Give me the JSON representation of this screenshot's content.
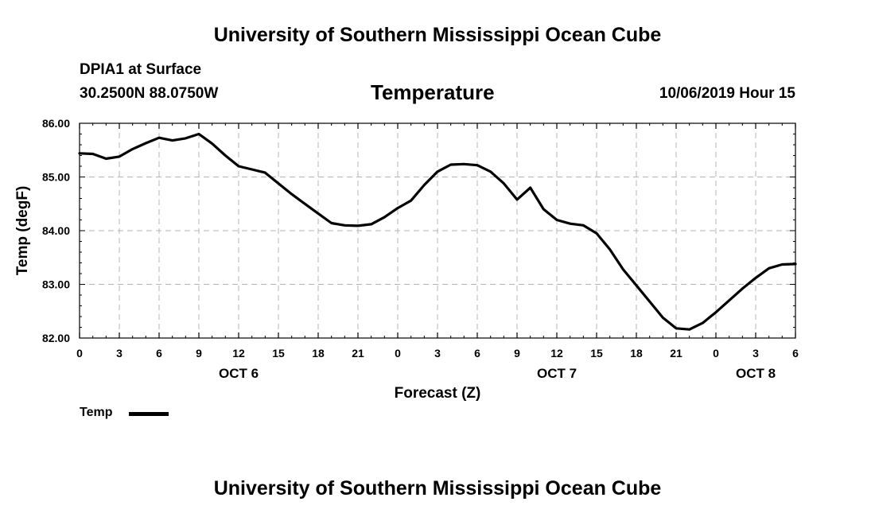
{
  "header": {
    "title": "University of Southern Mississippi Ocean Cube",
    "station": "DPIA1 at Surface",
    "coords": "30.2500N 88.0750W",
    "variable": "Temperature",
    "datetime": "10/06/2019 Hour 15"
  },
  "footer": {
    "title": "University of Southern Mississippi Ocean Cube"
  },
  "legend": {
    "label": "Temp"
  },
  "chart_data": {
    "type": "line",
    "title": "Temperature",
    "xlabel": "Forecast (Z)",
    "ylabel": "Temp (degF)",
    "ylim": [
      82,
      86
    ],
    "xlim": [
      0,
      54
    ],
    "yticks": [
      "82.00",
      "83.00",
      "84.00",
      "85.00",
      "86.00"
    ],
    "xticks": [
      {
        "x": 0,
        "label": "0"
      },
      {
        "x": 3,
        "label": "3"
      },
      {
        "x": 6,
        "label": "6"
      },
      {
        "x": 9,
        "label": "9"
      },
      {
        "x": 12,
        "label": "12"
      },
      {
        "x": 15,
        "label": "15"
      },
      {
        "x": 18,
        "label": "18"
      },
      {
        "x": 21,
        "label": "21"
      },
      {
        "x": 24,
        "label": "0"
      },
      {
        "x": 27,
        "label": "3"
      },
      {
        "x": 30,
        "label": "6"
      },
      {
        "x": 33,
        "label": "9"
      },
      {
        "x": 36,
        "label": "12"
      },
      {
        "x": 39,
        "label": "15"
      },
      {
        "x": 42,
        "label": "18"
      },
      {
        "x": 45,
        "label": "21"
      },
      {
        "x": 48,
        "label": "0"
      },
      {
        "x": 51,
        "label": "3"
      },
      {
        "x": 54,
        "label": "6"
      }
    ],
    "day_labels": [
      {
        "x": 12,
        "label": "OCT 6"
      },
      {
        "x": 36,
        "label": "OCT 7"
      },
      {
        "x": 51,
        "label": "OCT 8"
      }
    ],
    "grid": true,
    "series": [
      {
        "name": "Temp",
        "color": "#000000",
        "x": [
          0,
          1,
          2,
          3,
          4,
          5,
          6,
          7,
          8,
          9,
          10,
          11,
          12,
          13,
          14,
          15,
          16,
          17,
          18,
          19,
          20,
          21,
          22,
          23,
          24,
          25,
          26,
          27,
          28,
          29,
          30,
          31,
          32,
          33,
          34,
          35,
          36,
          37,
          38,
          39,
          40,
          41,
          42,
          43,
          44,
          45,
          46,
          47,
          48,
          49,
          50,
          51,
          52,
          53,
          54
        ],
        "values": [
          85.44,
          85.43,
          85.34,
          85.38,
          85.52,
          85.63,
          85.73,
          85.68,
          85.72,
          85.8,
          85.62,
          85.4,
          85.2,
          85.14,
          85.08,
          84.88,
          84.68,
          84.5,
          84.32,
          84.14,
          84.1,
          84.09,
          84.12,
          84.25,
          84.42,
          84.56,
          84.85,
          85.1,
          85.23,
          85.24,
          85.22,
          85.1,
          84.88,
          84.58,
          84.8,
          84.4,
          84.2,
          84.13,
          84.1,
          83.95,
          83.65,
          83.28,
          82.98,
          82.68,
          82.38,
          82.18,
          82.16,
          82.28,
          82.48,
          82.7,
          82.92,
          83.12,
          83.3,
          83.37,
          83.38
        ]
      }
    ]
  }
}
